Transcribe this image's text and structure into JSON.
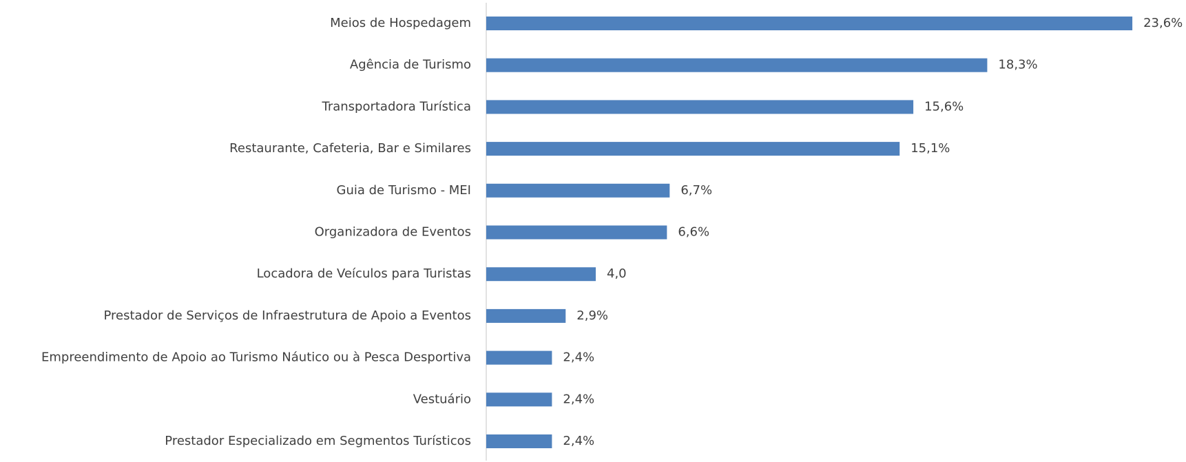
{
  "chart_data": {
    "type": "bar",
    "orientation": "horizontal",
    "color": "#4f81bd",
    "categories": [
      "Meios de Hospedagem",
      "Agência de Turismo",
      "Transportadora Turística",
      "Restaurante, Cafeteria, Bar e Similares",
      "Guia de Turismo - MEI",
      "Organizadora de Eventos",
      "Locadora de Veículos para Turistas",
      "Prestador de Serviços de Infraestrutura de Apoio a Eventos",
      "Empreendimento de Apoio ao Turismo Náutico ou à Pesca Desportiva",
      "Vestuário",
      "Prestador Especializado em Segmentos Turísticos"
    ],
    "values": [
      23.6,
      18.3,
      15.6,
      15.1,
      6.7,
      6.6,
      4.0,
      2.9,
      2.4,
      2.4,
      2.4
    ],
    "value_labels": [
      "23,6%",
      "18,3%",
      "15,6%",
      "15,1%",
      "6,7%",
      "6,6%",
      "4,0",
      "2,9%",
      "2,4%",
      "2,4%",
      "2,4%"
    ]
  }
}
